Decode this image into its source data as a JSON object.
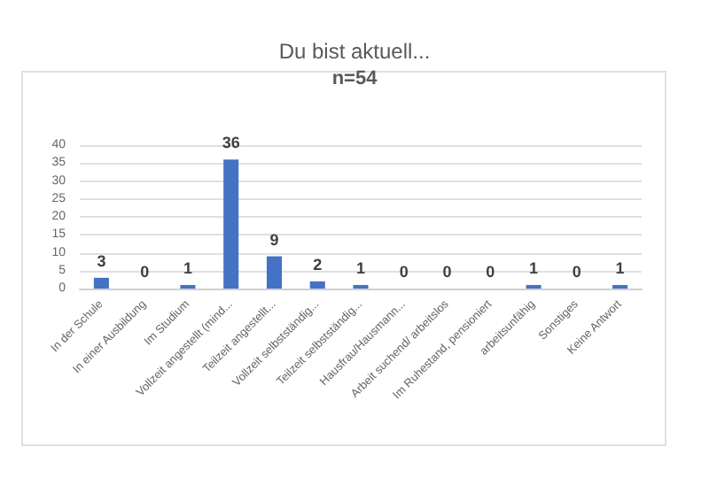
{
  "chart_data": {
    "type": "bar",
    "title": "Du bist aktuell...",
    "subtitle": "n=54",
    "categories": [
      "In der Schule",
      "In einer Ausbildung",
      "Im Studium",
      "Vollzeit angestellt (mind...",
      "Teilzeit angestellt...",
      "Vollzeit selbstständig...",
      "Teilzeit selbstständig...",
      "Hausfrau/Hausmann...",
      "Arbeit suchend/ arbeitslos",
      "Im Ruhestand, pensioniert",
      "arbeitsunfähig",
      "Sonstiges",
      "Keine Antwort"
    ],
    "values": [
      3,
      0,
      1,
      36,
      9,
      2,
      1,
      0,
      0,
      0,
      1,
      0,
      1
    ],
    "color": "#4472c4",
    "ylim": [
      0,
      40
    ],
    "yticks": [
      0,
      5,
      10,
      15,
      20,
      25,
      30,
      35,
      40
    ],
    "grid": "y",
    "data_labels": true
  }
}
